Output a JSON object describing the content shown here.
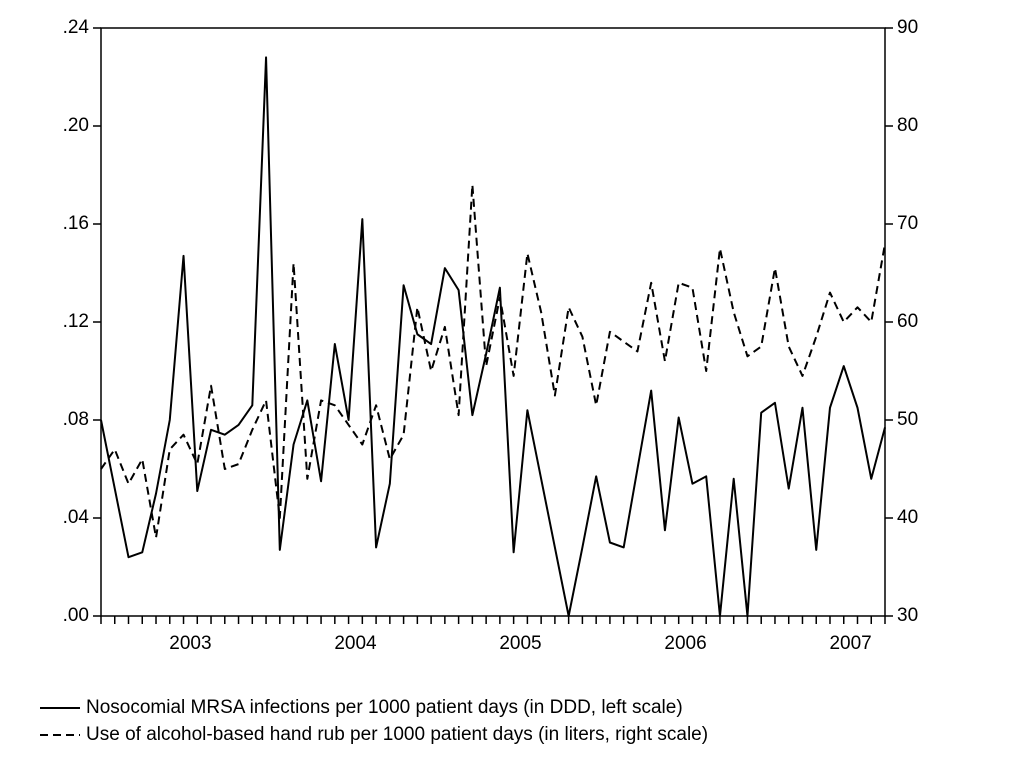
{
  "chart_data": {
    "type": "line",
    "categories": [
      null,
      null,
      null,
      null,
      null,
      null,
      null,
      "2003",
      null,
      null,
      null,
      null,
      null,
      null,
      null,
      null,
      null,
      null,
      null,
      "2004",
      null,
      null,
      null,
      null,
      null,
      null,
      null,
      null,
      null,
      null,
      null,
      "2005",
      null,
      null,
      null,
      null,
      null,
      null,
      null,
      null,
      null,
      null,
      null,
      "2006",
      null,
      null,
      null,
      null,
      null,
      null,
      null,
      null,
      null,
      null,
      null,
      "2007",
      null,
      null
    ],
    "series": [
      {
        "name": "Nosocomial MRSA infections per 1000 patient days (in DDD, left scale)",
        "color": "#000000",
        "dash": "solid",
        "values": [
          0.08,
          0.052,
          0.024,
          0.026,
          0.05,
          0.08,
          0.147,
          0.051,
          0.076,
          0.074,
          0.078,
          0.086,
          0.228,
          0.027,
          0.07,
          0.088,
          0.055,
          0.111,
          0.08,
          0.162,
          0.028,
          0.054,
          0.135,
          0.115,
          0.111,
          0.142,
          0.133,
          0.082,
          0.107,
          0.134,
          0.026,
          0.084,
          0.056,
          0.028,
          0.0,
          0.028,
          0.057,
          0.03,
          0.028,
          0.06,
          0.092,
          0.035,
          0.081,
          0.054,
          0.057,
          0.0,
          0.056,
          0.0,
          0.083,
          0.087,
          0.052,
          0.085,
          0.027,
          0.085,
          0.102,
          0.085,
          0.056,
          0.077
        ]
      },
      {
        "name": "Use of alcohol-based hand rub per 1000 patient days (in liters, right scale)",
        "color": "#000000",
        "dash": "dashed",
        "axis": "y2",
        "values": [
          45,
          47,
          43.5,
          46,
          38,
          47,
          48.5,
          45.5,
          53.5,
          45,
          45.5,
          49,
          52,
          40,
          66,
          44,
          52,
          51.5,
          49.5,
          47.5,
          51.5,
          46,
          48.5,
          61.5,
          55,
          59.5,
          50.5,
          74,
          55.5,
          62.5,
          54.5,
          67,
          61,
          52.5,
          61.5,
          58.5,
          51.5,
          59,
          58,
          57,
          64,
          56,
          64,
          63.5,
          55,
          67.5,
          61,
          56.5,
          57.5,
          65.5,
          57.5,
          54.5,
          58.5,
          63,
          60,
          61.5,
          60,
          68
        ]
      }
    ],
    "ylim": [
      0,
      0.24
    ],
    "yticks": [
      {
        "value": 0,
        "label": ".00"
      },
      {
        "value": 0.04,
        "label": ".04"
      },
      {
        "value": 0.08,
        "label": ".08"
      },
      {
        "value": 0.12,
        "label": ".12"
      },
      {
        "value": 0.16,
        "label": ".16"
      },
      {
        "value": 0.2,
        "label": ".20"
      },
      {
        "value": 0.24,
        "label": ".24"
      }
    ],
    "y2lim": [
      30,
      90
    ],
    "y2ticks": [
      30,
      40,
      50,
      60,
      70,
      80,
      90
    ],
    "grid": false,
    "legend": "bottom"
  }
}
